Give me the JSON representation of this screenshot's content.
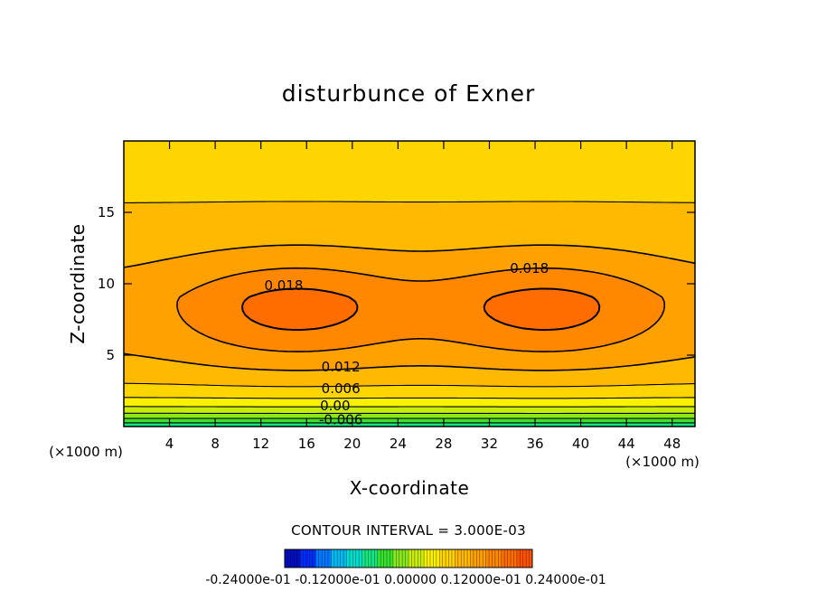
{
  "chart_data": {
    "type": "heatmap",
    "subtype": "filled-contour",
    "title": "disturbunce of Exner",
    "xlabel": "X-coordinate",
    "ylabel": "Z-coordinate",
    "x_unit_note": "(×1000 m)",
    "y_unit_note": "(×1000 m)",
    "xlim": [
      0,
      50
    ],
    "ylim": [
      0,
      20
    ],
    "xticks": [
      4,
      8,
      12,
      16,
      20,
      24,
      28,
      32,
      36,
      40,
      44,
      48
    ],
    "yticks": [
      5,
      10,
      15
    ],
    "contour_interval_text": "CONTOUR INTERVAL = 3.000E-03",
    "contour_interval": 0.003,
    "value_range": [
      -0.024,
      0.024
    ],
    "colorbar_labels": "-0.24000e-01 -0.12000e-01 0.00000 0.12000e-01 0.24000e-01",
    "contour_labels": [
      {
        "text": "0.018",
        "x": 14,
        "y": 9.8
      },
      {
        "text": "0.018",
        "x": 35.5,
        "y": 11.0
      },
      {
        "text": "0.012",
        "x": 19,
        "y": 4.1
      },
      {
        "text": "0.006",
        "x": 19,
        "y": 2.6
      },
      {
        "text": "0.00",
        "x": 18.5,
        "y": 1.4
      },
      {
        "text": "-0.006",
        "x": 19,
        "y": 0.4
      }
    ],
    "features": {
      "maxima": [
        {
          "x": 15,
          "z": 8.2,
          "value": 0.019
        },
        {
          "x": 37,
          "z": 8.2,
          "value": 0.019
        }
      ],
      "minimum_at_surface": -0.009
    },
    "grid": false,
    "colormap": [
      "#0000a0",
      "#0030ff",
      "#00b0ff",
      "#00e8c0",
      "#30e030",
      "#b0ec10",
      "#fff000",
      "#ffc000",
      "#ff9a00",
      "#ff7000",
      "#ff4400"
    ]
  }
}
